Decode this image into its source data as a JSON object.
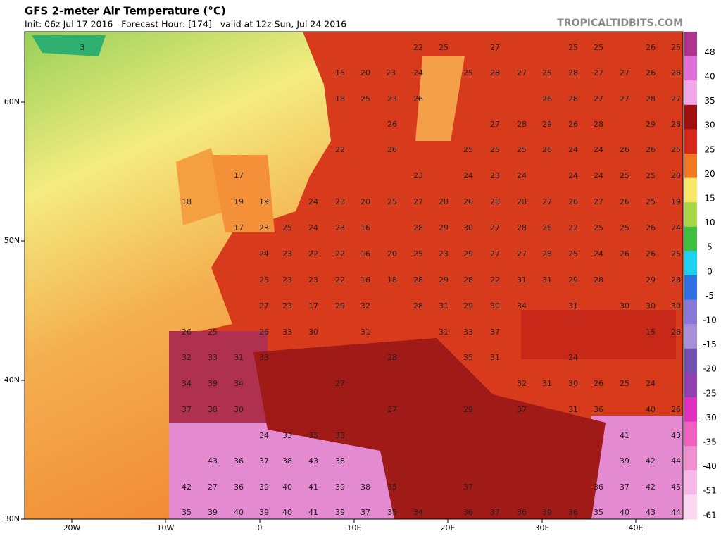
{
  "header": {
    "title": "GFS 2-meter Air Temperature (°C)",
    "subtitle": "Init: 06z Jul 17 2016   Forecast Hour: [174]   valid at 12z Sun, Jul 24 2016",
    "brand": "TROPICALTIDBITS.COM"
  },
  "axes": {
    "lon": [
      "20W",
      "10W",
      "0",
      "10E",
      "20E",
      "30E",
      "40E"
    ],
    "lat": [
      "60N",
      "50N",
      "40N",
      "30N"
    ]
  },
  "colorbar": {
    "ticks": [
      48,
      40,
      35,
      30,
      25,
      20,
      15,
      10,
      5,
      0,
      -5,
      -10,
      -15,
      -20,
      -25,
      -30,
      -35,
      -40,
      -51,
      -61
    ],
    "colors": [
      "#b0338f",
      "#e070d8",
      "#f0a8e8",
      "#a01010",
      "#d42818",
      "#f07820",
      "#f8e868",
      "#a8d848",
      "#40c040",
      "#20d0f0",
      "#3070e0",
      "#8878d8",
      "#a890d8",
      "#7050b0",
      "#9040b0",
      "#e030c0",
      "#f060c0",
      "#f090d0",
      "#f8b8e8",
      "#fcd8f0"
    ]
  },
  "map": {
    "rows": [
      [
        3,
        22,
        25,
        27,
        25,
        25,
        26,
        25
      ],
      [
        15,
        20,
        23,
        24,
        25,
        28,
        27,
        25,
        28,
        27,
        27,
        26,
        28
      ],
      [
        18,
        25,
        23,
        26,
        26,
        28,
        27,
        27,
        28,
        27
      ],
      [
        26,
        27,
        28,
        29,
        26,
        28,
        29,
        28
      ],
      [
        22,
        26,
        25,
        25,
        25,
        26,
        24,
        24,
        26,
        26,
        25
      ],
      [
        17,
        23,
        24,
        23,
        24,
        24,
        24,
        25,
        25,
        20
      ],
      [
        18,
        19,
        19,
        24,
        23,
        20,
        25,
        27,
        28,
        26,
        28,
        28,
        27,
        26,
        27,
        26,
        25,
        19
      ],
      [
        17,
        23,
        25,
        24,
        23,
        16,
        28,
        29,
        30,
        27,
        28,
        26,
        22,
        25,
        25,
        26,
        24
      ],
      [
        24,
        23,
        22,
        22,
        16,
        20,
        25,
        23,
        29,
        27,
        27,
        28,
        25,
        24,
        26,
        26,
        25
      ],
      [
        25,
        23,
        23,
        22,
        16,
        18,
        28,
        29,
        28,
        22,
        31,
        31,
        29,
        28,
        29,
        28
      ],
      [
        27,
        23,
        17,
        29,
        32,
        28,
        31,
        29,
        30,
        34,
        31,
        30,
        30,
        30
      ],
      [
        26,
        25,
        26,
        33,
        30,
        31,
        31,
        33,
        37,
        15,
        28
      ],
      [
        32,
        33,
        31,
        33,
        28,
        35,
        31,
        24
      ],
      [
        34,
        39,
        34,
        27,
        32,
        31,
        30,
        26,
        25,
        24
      ],
      [
        37,
        38,
        30,
        27,
        29,
        37,
        31,
        36,
        40,
        26
      ],
      [
        34,
        33,
        35,
        33,
        41,
        43
      ],
      [
        43,
        36,
        37,
        38,
        43,
        38,
        39,
        42,
        44
      ],
      [
        42,
        27,
        36,
        39,
        40,
        41,
        39,
        38,
        35,
        37,
        36,
        37,
        42,
        45
      ],
      [
        35,
        39,
        40,
        39,
        40,
        41,
        39,
        37,
        35,
        34,
        36,
        37,
        36,
        39,
        36,
        35,
        40,
        43,
        44
      ]
    ]
  }
}
